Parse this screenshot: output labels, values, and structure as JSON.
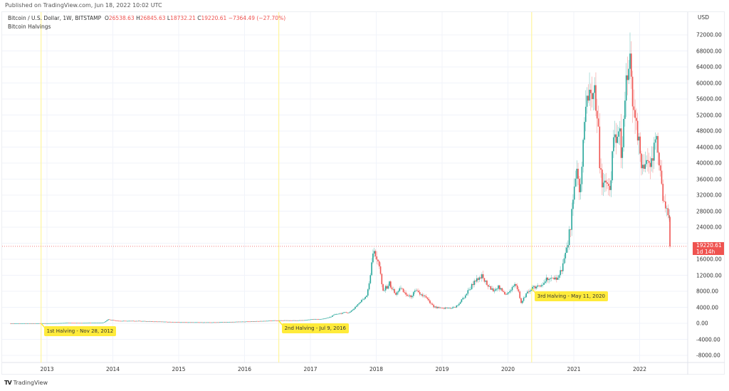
{
  "header": {
    "published": "Published on TradingView.com, Jun 18, 2022 10:02 UTC",
    "symbol": "Bitcoin / U.S. Dollar, 1W, BITSTAMP",
    "open_label": "O",
    "open": "26538.63",
    "high_label": "H",
    "high": "26845.63",
    "low_label": "L",
    "low": "18732.21",
    "close_label": "C",
    "close": "19220.61",
    "change": "−7364.49 (−27.70%)",
    "indicator": "Bitcoin Halvings"
  },
  "price_tag": {
    "price": "19220.61",
    "countdown": "1d 14h"
  },
  "footer": {
    "brand": "TradingView"
  },
  "colors": {
    "up": "#26a69a",
    "down": "#ef5350",
    "halving": "#ffeb3b",
    "grid": "#f0f3fa"
  },
  "chart_data": {
    "type": "candlestick",
    "title": "Bitcoin / U.S. Dollar, 1W, BITSTAMP",
    "currency_label": "USD",
    "ylim": [
      -10000,
      76000
    ],
    "y_ticks": [
      "72000.00",
      "68000.00",
      "64000.00",
      "60000.00",
      "56000.00",
      "52000.00",
      "48000.00",
      "44000.00",
      "40000.00",
      "36000.00",
      "32000.00",
      "28000.00",
      "24000.00",
      "16000.00",
      "12000.00",
      "8000.00",
      "4000.00",
      "0.00",
      "-4000.00",
      "-8000.00"
    ],
    "y_tick_values": [
      72000,
      68000,
      64000,
      60000,
      56000,
      52000,
      48000,
      44000,
      40000,
      36000,
      32000,
      28000,
      24000,
      16000,
      12000,
      8000,
      4000,
      0,
      -4000,
      -8000
    ],
    "x_ticks": [
      "2013",
      "2014",
      "2015",
      "2016",
      "2017",
      "2018",
      "2019",
      "2020",
      "2021",
      "2022"
    ],
    "x_tick_values": [
      2013,
      2014,
      2015,
      2016,
      2017,
      2018,
      2019,
      2020,
      2021,
      2022
    ],
    "last_price": 19220.61,
    "halvings": [
      {
        "label": "1st Halving - Nov 28, 2012",
        "t": 2012.91,
        "price": 12
      },
      {
        "label": "2nd Halving - Jul 9, 2016",
        "t": 2016.52,
        "price": 650
      },
      {
        "label": "3rd Halving - May 11, 2020",
        "t": 2020.36,
        "price": 8700
      }
    ],
    "close_path": [
      [
        2012.45,
        6
      ],
      [
        2013.0,
        13
      ],
      [
        2013.3,
        120
      ],
      [
        2013.5,
        90
      ],
      [
        2013.85,
        200
      ],
      [
        2013.92,
        1000
      ],
      [
        2014.0,
        800
      ],
      [
        2014.1,
        600
      ],
      [
        2014.4,
        600
      ],
      [
        2014.9,
        350
      ],
      [
        2015.0,
        280
      ],
      [
        2015.5,
        250
      ],
      [
        2015.9,
        400
      ],
      [
        2016.0,
        430
      ],
      [
        2016.45,
        700
      ],
      [
        2016.9,
        750
      ],
      [
        2017.0,
        1000
      ],
      [
        2017.2,
        1100
      ],
      [
        2017.4,
        2400
      ],
      [
        2017.6,
        2800
      ],
      [
        2017.7,
        4500
      ],
      [
        2017.85,
        7000
      ],
      [
        2017.96,
        19000
      ],
      [
        2018.05,
        14000
      ],
      [
        2018.1,
        8000
      ],
      [
        2018.2,
        10000
      ],
      [
        2018.3,
        7000
      ],
      [
        2018.35,
        9000
      ],
      [
        2018.5,
        6500
      ],
      [
        2018.6,
        8000
      ],
      [
        2018.75,
        6500
      ],
      [
        2018.88,
        4000
      ],
      [
        2019.0,
        3700
      ],
      [
        2019.2,
        4000
      ],
      [
        2019.35,
        7000
      ],
      [
        2019.5,
        11000
      ],
      [
        2019.55,
        10500
      ],
      [
        2019.6,
        11800
      ],
      [
        2019.75,
        8200
      ],
      [
        2019.85,
        9200
      ],
      [
        2019.95,
        7200
      ],
      [
        2020.1,
        9500
      ],
      [
        2020.15,
        8800
      ],
      [
        2020.2,
        5000
      ],
      [
        2020.25,
        6800
      ],
      [
        2020.36,
        8800
      ],
      [
        2020.5,
        9200
      ],
      [
        2020.6,
        11500
      ],
      [
        2020.7,
        10600
      ],
      [
        2020.8,
        13000
      ],
      [
        2020.9,
        19000
      ],
      [
        2020.98,
        29000
      ],
      [
        2021.05,
        38000
      ],
      [
        2021.1,
        33000
      ],
      [
        2021.15,
        47000
      ],
      [
        2021.2,
        57000
      ],
      [
        2021.3,
        59000
      ],
      [
        2021.37,
        48000
      ],
      [
        2021.4,
        37000
      ],
      [
        2021.5,
        34000
      ],
      [
        2021.55,
        32000
      ],
      [
        2021.6,
        46000
      ],
      [
        2021.7,
        47000
      ],
      [
        2021.73,
        42000
      ],
      [
        2021.8,
        61000
      ],
      [
        2021.85,
        65000
      ],
      [
        2021.88,
        58000
      ],
      [
        2021.95,
        48000
      ],
      [
        2022.0,
        43000
      ],
      [
        2022.05,
        37000
      ],
      [
        2022.12,
        42000
      ],
      [
        2022.2,
        39000
      ],
      [
        2022.24,
        47000
      ],
      [
        2022.3,
        39000
      ],
      [
        2022.35,
        31000
      ],
      [
        2022.42,
        29500
      ],
      [
        2022.45,
        26538.63
      ],
      [
        2022.46,
        19220.61
      ]
    ]
  }
}
